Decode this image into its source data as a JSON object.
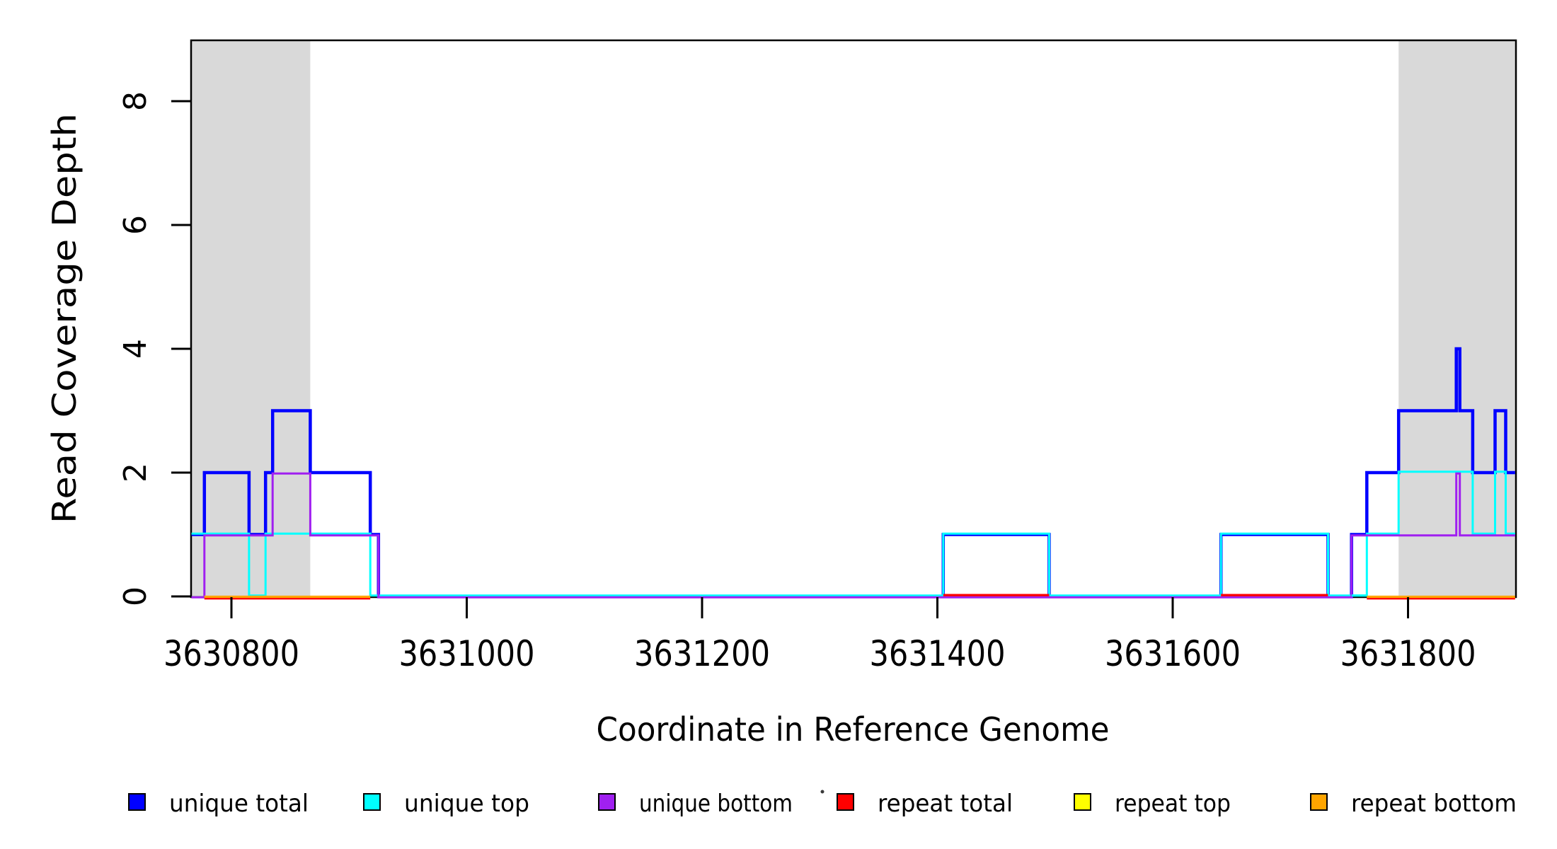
{
  "page": {
    "background": "#FFFFFF"
  },
  "chart_data": {
    "type": "line",
    "subtype": "step-coverage-plot",
    "title": "",
    "xlabel": "Coordinate in Reference Genome",
    "ylabel": "Read Coverage Depth",
    "xlim": [
      3630766,
      3631891
    ],
    "ylim": [
      0,
      9
    ],
    "x_ticks": [
      3630800,
      3631000,
      3631200,
      3631400,
      3631600,
      3631800
    ],
    "y_ticks": [
      0,
      2,
      4,
      6,
      8
    ],
    "grid": false,
    "legend_position": "bottom-horizontal",
    "shaded_regions": {
      "color": "#D9D9D9",
      "ranges": [
        [
          3630766,
          3630867
        ],
        [
          3631792,
          3631891
        ]
      ]
    },
    "series": [
      {
        "name": "unique total",
        "color": "#0000FF",
        "points": [
          [
            3630766,
            1
          ],
          [
            3630777,
            2
          ],
          [
            3630815,
            1
          ],
          [
            3630829,
            2
          ],
          [
            3630835,
            3
          ],
          [
            3630867,
            2
          ],
          [
            3630918,
            1
          ],
          [
            3630925,
            0
          ],
          [
            3631405,
            1
          ],
          [
            3631495,
            0
          ],
          [
            3631641,
            1
          ],
          [
            3631732,
            0
          ],
          [
            3631752,
            1
          ],
          [
            3631765,
            2
          ],
          [
            3631792,
            3
          ],
          [
            3631841,
            4
          ],
          [
            3631844,
            3
          ],
          [
            3631855,
            2
          ],
          [
            3631874,
            3
          ],
          [
            3631883,
            2
          ]
        ]
      },
      {
        "name": "unique top",
        "color": "#00FFFF",
        "points": [
          [
            3630766,
            1
          ],
          [
            3630815,
            0
          ],
          [
            3630829,
            1
          ],
          [
            3630918,
            0
          ],
          [
            3631405,
            1
          ],
          [
            3631495,
            0
          ],
          [
            3631641,
            1
          ],
          [
            3631732,
            0
          ],
          [
            3631765,
            1
          ],
          [
            3631792,
            2
          ],
          [
            3631855,
            1
          ],
          [
            3631874,
            2
          ],
          [
            3631883,
            1
          ]
        ]
      },
      {
        "name": "unique bottom",
        "color": "#A020F0",
        "points": [
          [
            3630766,
            0
          ],
          [
            3630777,
            1
          ],
          [
            3630835,
            2
          ],
          [
            3630867,
            1
          ],
          [
            3630925,
            0
          ],
          [
            3631752,
            1
          ],
          [
            3631841,
            2
          ],
          [
            3631844,
            1
          ]
        ]
      },
      {
        "name": "repeat total",
        "color": "#FF0000",
        "points": [
          [
            3630766,
            0
          ]
        ]
      },
      {
        "name": "repeat top",
        "color": "#FFFF00",
        "points": [
          [
            3630766,
            0
          ]
        ]
      },
      {
        "name": "repeat bottom",
        "color": "#FFA500",
        "points": [
          [
            3630766,
            0
          ]
        ]
      }
    ],
    "zero_line_overlays": [
      {
        "from": 3630777,
        "to": 3630918,
        "color": "#FF0000",
        "dy": 2.9,
        "lw": 3
      },
      {
        "from": 3630777,
        "to": 3630918,
        "color": "#FFA500",
        "dy": 0.5,
        "lw": 3.2
      },
      {
        "from": 3631405,
        "to": 3631495,
        "color": "#FF0000",
        "dy": -1.9,
        "lw": 3.2
      },
      {
        "from": 3631641,
        "to": 3631732,
        "color": "#FF0000",
        "dy": -1.9,
        "lw": 3.2
      },
      {
        "from": 3631752,
        "to": 3631765,
        "color": "#00FFFF",
        "dy": -1.3,
        "lw": 3
      },
      {
        "from": 3631765,
        "to": 3631891,
        "color": "#FF0000",
        "dy": 2.9,
        "lw": 3
      },
      {
        "from": 3631765,
        "to": 3631891,
        "color": "#FFA500",
        "dy": 0.5,
        "lw": 3.2
      }
    ],
    "legend": {
      "items": [
        {
          "label": "unique total",
          "color": "#0000FF"
        },
        {
          "label": "unique top",
          "color": "#00FFFF"
        },
        {
          "label": "unique bottom",
          "color": "#A020F0"
        },
        {
          "label": "repeat total",
          "color": "#FF0000"
        },
        {
          "label": "repeat top",
          "color": "#FFFF00"
        },
        {
          "label": "repeat bottom",
          "color": "#FFA500"
        }
      ],
      "artifact_dot": true
    }
  }
}
